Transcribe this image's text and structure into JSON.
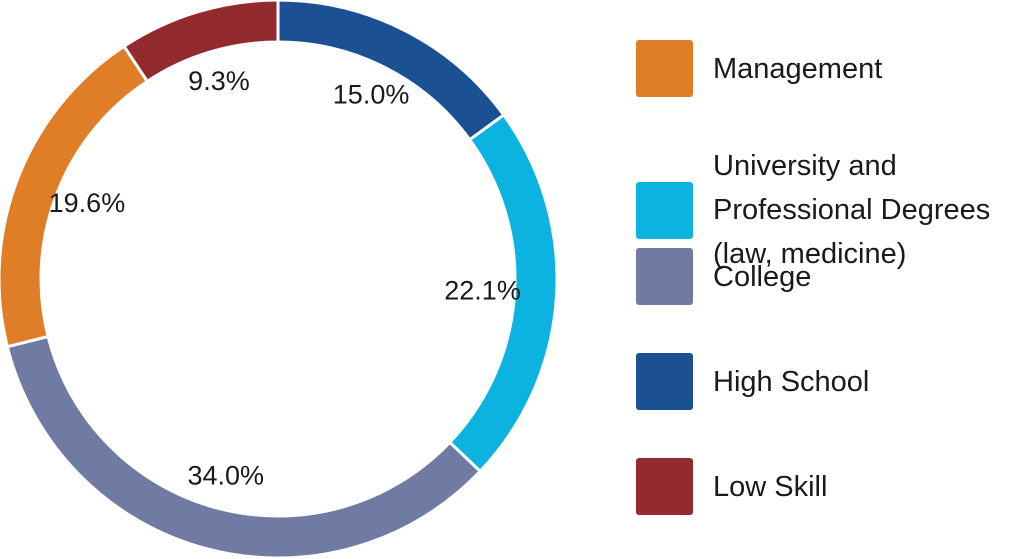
{
  "chart_data": {
    "type": "pie",
    "variant": "donut",
    "slices": [
      {
        "label": "High School",
        "value": 15.0,
        "value_label": "15.0%",
        "color": "#1B5193"
      },
      {
        "label": "University and Professional Degrees (law, medicine)",
        "value": 22.1,
        "value_label": "22.1%",
        "color": "#0CB3E1"
      },
      {
        "label": "College",
        "value": 34.0,
        "value_label": "34.0%",
        "color": "#6F7BA3"
      },
      {
        "label": "Management",
        "value": 19.6,
        "value_label": "19.6%",
        "color": "#E07E27"
      },
      {
        "label": "Low Skill",
        "value": 9.3,
        "value_label": "9.3%",
        "color": "#922A2E"
      }
    ],
    "legend": [
      {
        "label": "Management",
        "color": "#E07E27"
      },
      {
        "label": "University and Professional Degrees (law, medicine)",
        "color": "#0CB3E1"
      },
      {
        "label": "College",
        "color": "#6F7BA3"
      },
      {
        "label": "High School",
        "color": "#1B5193"
      },
      {
        "label": "Low Skill",
        "color": "#922A2E"
      }
    ],
    "legend_position": "right"
  }
}
